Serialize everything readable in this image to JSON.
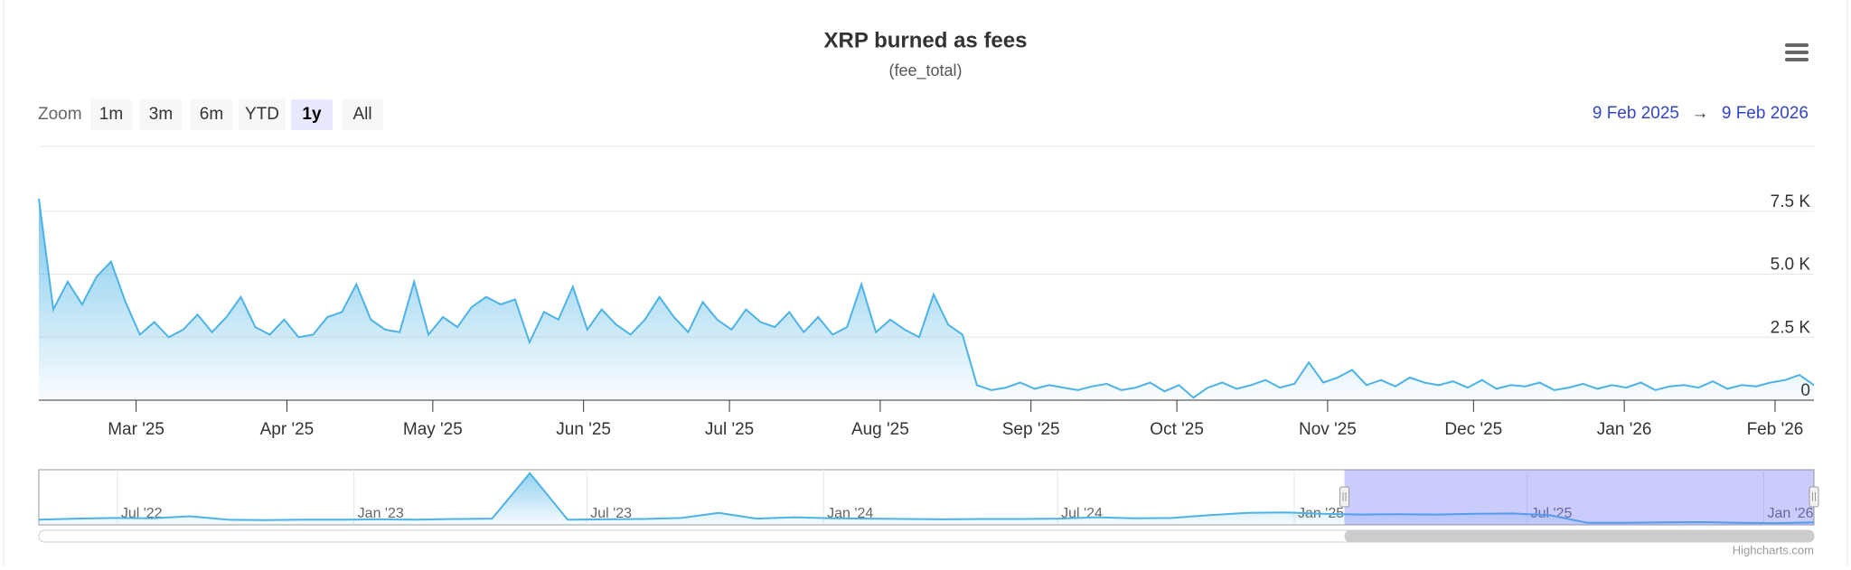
{
  "chart_data": {
    "type": "area",
    "title": "XRP burned as fees",
    "subtitle": "(fee_total)",
    "zoom_label": "Zoom",
    "zoom_buttons": [
      "1m",
      "3m",
      "6m",
      "YTD",
      "1y",
      "All"
    ],
    "selected_button_index": 4,
    "range_from": "9 Feb 2025",
    "range_arrow": "→",
    "range_to": "9 Feb 2026",
    "credits": "Highcharts.com",
    "color": "#4db3e6",
    "grid": true,
    "xlim": [
      "2025-02-09",
      "2026-02-09"
    ],
    "xticks": [
      {
        "value": "2025-03",
        "label": "Mar '25"
      },
      {
        "value": "2025-04",
        "label": "Apr '25"
      },
      {
        "value": "2025-05",
        "label": "May '25"
      },
      {
        "value": "2025-06",
        "label": "Jun '25"
      },
      {
        "value": "2025-07",
        "label": "Jul '25"
      },
      {
        "value": "2025-08",
        "label": "Aug '25"
      },
      {
        "value": "2025-09",
        "label": "Sep '25"
      },
      {
        "value": "2025-10",
        "label": "Oct '25"
      },
      {
        "value": "2025-11",
        "label": "Nov '25"
      },
      {
        "value": "2025-12",
        "label": "Dec '25"
      },
      {
        "value": "2026-01",
        "label": "Jan '26"
      },
      {
        "value": "2026-02",
        "label": "Feb '26"
      }
    ],
    "ylim": [
      0,
      9000
    ],
    "yticks": [
      0,
      {
        "value": 2500,
        "label": "2.5 K"
      },
      {
        "value": 5000,
        "label": "5.0 K"
      },
      {
        "value": 7500,
        "label": "7.5 K"
      }
    ],
    "values": [
      8000,
      3600,
      4700,
      3800,
      4900,
      5500,
      3900,
      2600,
      3100,
      2500,
      2800,
      3400,
      2700,
      3300,
      4100,
      2900,
      2600,
      3200,
      2500,
      2600,
      3300,
      3500,
      4600,
      3200,
      2800,
      2700,
      4700,
      2600,
      3300,
      2900,
      3700,
      4100,
      3800,
      4000,
      2300,
      3500,
      3200,
      4500,
      2800,
      3600,
      3000,
      2600,
      3200,
      4100,
      3300,
      2700,
      3900,
      3200,
      2800,
      3600,
      3100,
      2900,
      3500,
      2700,
      3300,
      2600,
      2900,
      4600,
      2700,
      3200,
      2800,
      2500,
      4200,
      3000,
      2600,
      600,
      400,
      500,
      700,
      450,
      600,
      500,
      400,
      550,
      650,
      400,
      500,
      700,
      350,
      600,
      100,
      500,
      700,
      450,
      600,
      800,
      500,
      650,
      1500,
      700,
      900,
      1200,
      600,
      800,
      550,
      900,
      700,
      600,
      750,
      500,
      800,
      450,
      600,
      550,
      700,
      400,
      500,
      650,
      450,
      600,
      500,
      700,
      400,
      550,
      600,
      500,
      750,
      450,
      600,
      550,
      700,
      800,
      1000,
      600
    ],
    "navigator": {
      "xlim": [
        "2022-05",
        "2026-02-09"
      ],
      "ylim": [
        0,
        16000
      ],
      "xticks": [
        {
          "value": "2022-07",
          "label": "Jul '22"
        },
        {
          "value": "2023-01",
          "label": "Jan '23"
        },
        {
          "value": "2023-07",
          "label": "Jul '23"
        },
        {
          "value": "2024-01",
          "label": "Jan '24"
        },
        {
          "value": "2024-07",
          "label": "Jul '24"
        },
        {
          "value": "2025-01",
          "label": "Jan '25"
        },
        {
          "value": "2025-07",
          "label": "Jul '25"
        },
        {
          "value": "2026-01",
          "label": "Jan '26"
        }
      ],
      "values": [
        1500,
        1800,
        2000,
        1900,
        2500,
        1500,
        1400,
        1500,
        1500,
        1600,
        1500,
        1700,
        1800,
        15000,
        1500,
        1600,
        1700,
        2000,
        3500,
        1800,
        2200,
        1900,
        1800,
        1700,
        1600,
        1700,
        1700,
        1800,
        2200,
        1900,
        2000,
        2800,
        3500,
        3600,
        3200,
        3000,
        3100,
        3000,
        3200,
        3300,
        2800,
        600,
        600,
        700,
        800,
        600,
        500,
        700
      ]
    }
  }
}
